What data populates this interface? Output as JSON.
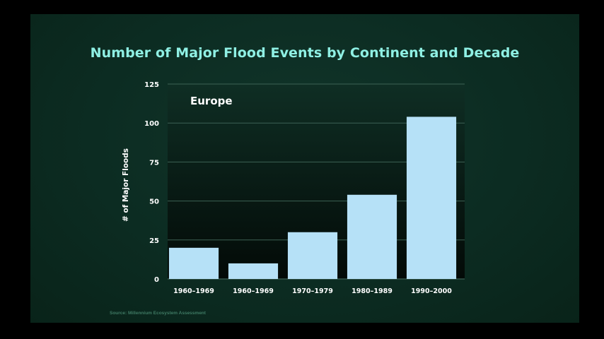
{
  "colors": {
    "background": "#0c2c22",
    "title": "#8ff0e4",
    "bar": "#b6e1f7",
    "gridline": "#3d6155",
    "text": "#ffffff"
  },
  "chart_data": {
    "type": "bar",
    "title": "Number of Major Flood Events by Continent and Decade",
    "panel_label": "Europe",
    "xlabel": "",
    "ylabel": "# of Major Floods",
    "categories": [
      "1960–1969",
      "1960–1969",
      "1970–1979",
      "1980–1989",
      "1990–2000"
    ],
    "values": [
      20,
      10,
      30,
      54,
      104
    ],
    "ylim": [
      0,
      125
    ],
    "yticks": [
      "0",
      "25",
      "50",
      "75",
      "100",
      "125"
    ],
    "grid": true,
    "source": "Source: Millennium Ecosystem Assessment"
  }
}
